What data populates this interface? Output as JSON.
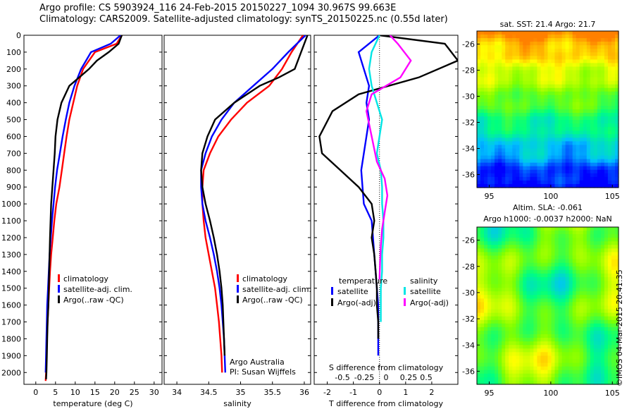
{
  "title_line1": "Argo profile: CS 5903924_116 24-Feb-2015 20150227_1094 30.967S 99.663E",
  "title_line2": "Climatology: CARS2009. Satellite-adjusted climatology: synTS_20150225.nc (0.55d later)",
  "footer": "©IMOS 04-Mar-2015 20:41:35",
  "colors": {
    "climatology": "#ff0000",
    "satellite": "#0000ff",
    "argo": "#000000",
    "salinity_satellite": "#00e5e5",
    "salinity_argo": "#ff00ff"
  },
  "chart_data": [
    {
      "type": "line",
      "xlabel": "temperature (deg C)",
      "ylabel": "",
      "xlim": [
        -3,
        32
      ],
      "ylim": [
        2070,
        0
      ],
      "xticks": [
        0,
        5,
        10,
        15,
        20,
        25,
        30
      ],
      "yticks": [
        0,
        100,
        200,
        300,
        400,
        500,
        600,
        700,
        800,
        900,
        1000,
        1100,
        1200,
        1300,
        1400,
        1500,
        1600,
        1700,
        1800,
        1900,
        2000
      ],
      "grid": false,
      "legend_position": "bottom-center",
      "series": [
        {
          "name": "climatology",
          "color": "#ff0000",
          "x": [
            21.8,
            20.5,
            15,
            12,
            10.5,
            9.5,
            8.5,
            7.8,
            7.2,
            6.6,
            6,
            5.2,
            4.7,
            4.3,
            3.9,
            3.6,
            3.4,
            3.2,
            3,
            2.8,
            2.7,
            2.6,
            2.5
          ],
          "y": [
            0,
            50,
            100,
            200,
            300,
            400,
            500,
            600,
            700,
            800,
            900,
            1000,
            1100,
            1200,
            1300,
            1400,
            1500,
            1600,
            1700,
            1800,
            1900,
            2000,
            2050
          ]
        },
        {
          "name": "satellite-adj. clim.",
          "color": "#0000ff",
          "x": [
            21.5,
            19,
            14,
            11.5,
            9.8,
            8.5,
            7.6,
            6.8,
            6.1,
            5.4,
            4.9,
            4.5,
            4.1,
            3.8,
            3.5,
            3.3,
            3.1,
            2.9,
            2.8,
            2.7,
            2.6,
            2.5
          ],
          "y": [
            0,
            50,
            100,
            200,
            300,
            400,
            500,
            600,
            700,
            800,
            900,
            1000,
            1100,
            1200,
            1300,
            1400,
            1500,
            1600,
            1700,
            1800,
            1900,
            2000
          ]
        },
        {
          "name": "Argo(..raw -QC)",
          "color": "#000000",
          "x": [
            21.8,
            21,
            18.5,
            15.5,
            13.5,
            11,
            8.5,
            6.5,
            5.5,
            5,
            4.8,
            4.5,
            4.2,
            3.9,
            3.6,
            3.4,
            3.2,
            3,
            2.9,
            2.8,
            2.7,
            2.6
          ],
          "y": [
            0,
            50,
            100,
            150,
            200,
            250,
            300,
            400,
            500,
            600,
            700,
            800,
            900,
            1000,
            1200,
            1400,
            1600,
            1700,
            1800,
            1900,
            2000,
            2040
          ]
        }
      ]
    },
    {
      "type": "line",
      "xlabel": "salinity",
      "ylabel": "",
      "xlim": [
        33.8,
        36.1
      ],
      "ylim": [
        2070,
        0
      ],
      "xticks": [
        34,
        34.5,
        35,
        35.5,
        36
      ],
      "grid": false,
      "legend_position": "bottom-center",
      "annotations": [
        "Argo Australia",
        "PI: Susan Wijffels"
      ],
      "series": [
        {
          "name": "climatology",
          "color": "#ff0000",
          "x": [
            35.98,
            35.8,
            35.65,
            35.45,
            35.1,
            34.85,
            34.65,
            34.52,
            34.42,
            34.4,
            34.4,
            34.42,
            34.45,
            34.5,
            34.55,
            34.6,
            34.63,
            34.66,
            34.68,
            34.7,
            34.71
          ],
          "y": [
            0,
            100,
            200,
            300,
            400,
            500,
            600,
            700,
            800,
            900,
            1000,
            1100,
            1200,
            1300,
            1400,
            1500,
            1600,
            1700,
            1800,
            1900,
            2000
          ]
        },
        {
          "name": "satellite-adj. clim.",
          "color": "#0000ff",
          "x": [
            36.02,
            35.75,
            35.5,
            35.2,
            34.9,
            34.7,
            34.55,
            34.45,
            34.38,
            34.38,
            34.4,
            34.45,
            34.52,
            34.58,
            34.63,
            34.67,
            34.7,
            34.72,
            34.74,
            34.75,
            34.76
          ],
          "y": [
            0,
            100,
            200,
            300,
            400,
            500,
            600,
            700,
            800,
            900,
            1000,
            1100,
            1200,
            1300,
            1400,
            1500,
            1600,
            1700,
            1800,
            1900,
            2000
          ]
        },
        {
          "name": "Argo(..raw -QC)",
          "color": "#000000",
          "x": [
            36.05,
            35.95,
            35.85,
            35.6,
            35.3,
            34.9,
            34.6,
            34.48,
            34.4,
            34.38,
            34.4,
            34.45,
            34.52,
            34.58,
            34.63,
            34.67,
            34.7,
            34.72,
            34.73,
            34.74,
            34.75
          ],
          "y": [
            0,
            100,
            200,
            250,
            300,
            400,
            500,
            600,
            700,
            800,
            900,
            1000,
            1100,
            1200,
            1300,
            1400,
            1500,
            1600,
            1700,
            1800,
            1900
          ]
        }
      ]
    },
    {
      "type": "line",
      "xlabel": "T difference from climatology",
      "ylabel": "",
      "secondary_xlabel": "S difference from climatology",
      "xlim": [
        -2.5,
        3
      ],
      "ylim": [
        2070,
        0
      ],
      "xticks": [
        -2,
        -1,
        0,
        1,
        2
      ],
      "secondary_xticks": [
        "-0.5",
        "-0.25",
        "0",
        "0.25",
        "0.5"
      ],
      "zero_line": "dotted",
      "grid": false,
      "legend_position": "bottom",
      "legend_titles": [
        "temperature",
        "salinity"
      ],
      "series": [
        {
          "name": "satellite",
          "color": "#0000ff",
          "x": [
            0,
            -0.8,
            -0.6,
            -0.4,
            -0.5,
            -0.4,
            -0.5,
            -0.6,
            -0.7,
            -0.65,
            -0.6,
            -0.3,
            -0.25,
            -0.2,
            -0.15,
            -0.1,
            -0.05,
            -0.05,
            -0.05,
            -0.05
          ],
          "y": [
            0,
            100,
            200,
            300,
            400,
            500,
            600,
            700,
            800,
            900,
            1000,
            1100,
            1200,
            1300,
            1400,
            1500,
            1600,
            1700,
            1800,
            1900
          ]
        },
        {
          "name": "Argo(-adj)",
          "color": "#000000",
          "x": [
            0,
            2.5,
            3,
            1.5,
            -0.8,
            -1.8,
            -2.3,
            -2.2,
            -1.5,
            -0.8,
            -0.3,
            -0.2,
            -0.3,
            -0.2,
            -0.15,
            -0.1,
            -0.1,
            -0.05,
            -0.05
          ],
          "y": [
            0,
            50,
            150,
            250,
            350,
            450,
            600,
            700,
            800,
            900,
            1000,
            1100,
            1200,
            1300,
            1400,
            1500,
            1600,
            1700,
            1800
          ]
        },
        {
          "name": "satellite",
          "color": "#00e5e5",
          "x": [
            0,
            -0.3,
            -0.4,
            -0.3,
            -0.1,
            0.1,
            0.0,
            -0.1,
            0.05,
            0.1,
            0.1,
            0.15,
            0.15,
            0.1,
            0.1,
            0.05,
            0.05,
            0.05
          ],
          "y": [
            0,
            100,
            200,
            300,
            400,
            500,
            600,
            700,
            800,
            900,
            1000,
            1100,
            1200,
            1300,
            1400,
            1500,
            1600,
            1700
          ]
        },
        {
          "name": "Argo(-adj)",
          "color": "#ff00ff",
          "x": [
            0.4,
            0.7,
            1.2,
            0.8,
            -0.3,
            -0.5,
            -0.3,
            -0.1,
            0.2,
            0.3,
            0.2,
            0.1,
            0.05,
            0.02,
            0.0
          ],
          "y": [
            0,
            50,
            150,
            250,
            350,
            450,
            600,
            750,
            850,
            950,
            1050,
            1150,
            1250,
            1350,
            1450
          ]
        }
      ]
    },
    {
      "type": "heatmap",
      "title": "sat. SST: 21.4 Argo: 21.7",
      "xlim": [
        94,
        105.5
      ],
      "ylim": [
        -37,
        -25
      ],
      "xticks": [
        95,
        100,
        105
      ],
      "yticks": [
        -26,
        -28,
        -30,
        -32,
        -34,
        -36
      ],
      "colormap": [
        "#0000ff",
        "#00bfff",
        "#00ff80",
        "#80ff00",
        "#ffff00",
        "#ff8000"
      ],
      "marker": {
        "x": 99.663,
        "y": -30.967
      }
    },
    {
      "type": "heatmap",
      "title": "Altim. SLA: -0.061",
      "subtitle": "Argo h1000: -0.0037 h2000: NaN",
      "xlim": [
        94,
        105.5
      ],
      "ylim": [
        -37,
        -25
      ],
      "xticks": [
        95,
        100,
        105
      ],
      "yticks": [
        -26,
        -28,
        -30,
        -32,
        -34,
        -36
      ],
      "colormap": [
        "#00bfff",
        "#00ff80",
        "#80ff00",
        "#ffff00",
        "#ff8000"
      ],
      "marker": {
        "x": 99.663,
        "y": -30.967
      }
    }
  ]
}
